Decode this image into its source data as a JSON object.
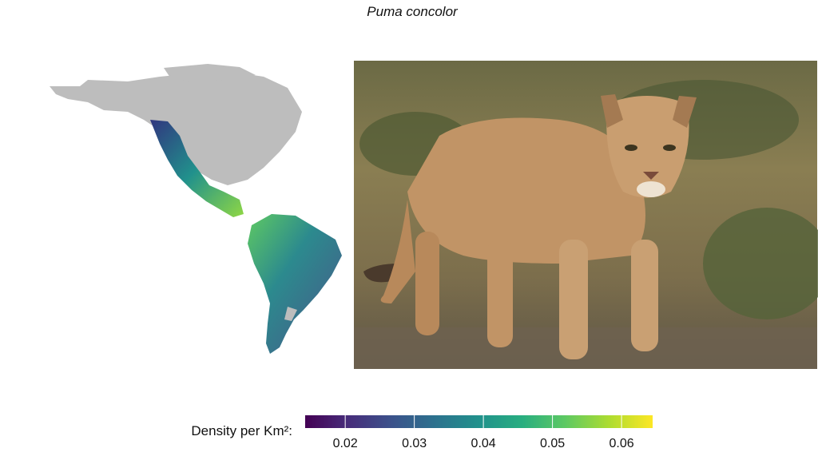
{
  "title": "Puma concolor",
  "colorbar": {
    "label": "Density per Km²:",
    "lim": [
      0.0142,
      0.0645
    ],
    "ticks": [
      0.02,
      0.03,
      0.04,
      0.05,
      0.06
    ],
    "colors": [
      "#440154",
      "#472d7b",
      "#3b528b",
      "#2c728e",
      "#21918c",
      "#28ae80",
      "#5ec962",
      "#addc30",
      "#fde725"
    ]
  }
}
